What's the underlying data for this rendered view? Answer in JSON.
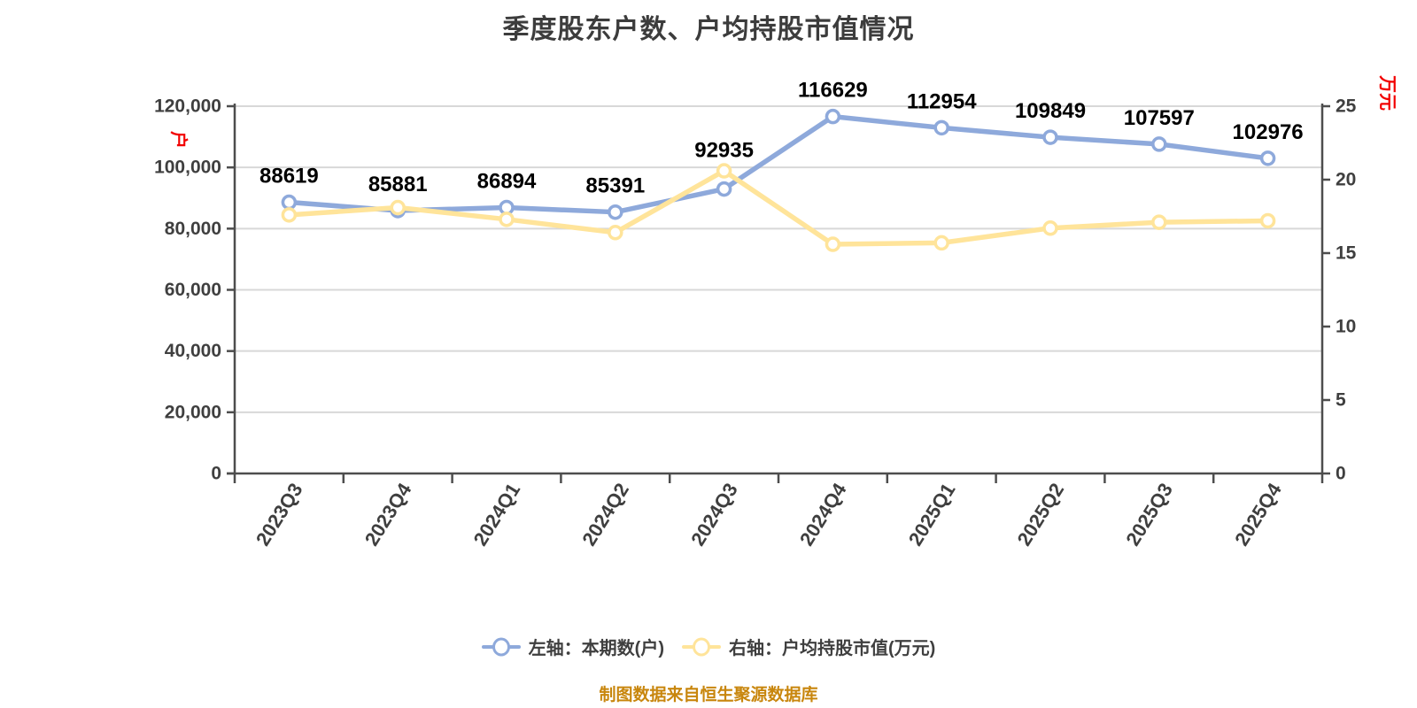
{
  "title": "季度股东户数、户均持股市值情况",
  "footer": "制图数据来自恒生聚源数据库",
  "legend": [
    {
      "label": "左轴：本期数(户)",
      "color": "#8EA9DB"
    },
    {
      "label": "右轴：户均持股市值(万元)",
      "color": "#FFE49A"
    }
  ],
  "colors": {
    "title": "#3C3C3C",
    "grid": "#D8D8D8",
    "axis": "#4D4D4D",
    "tick_text": "#3F3F3F",
    "data_label": "#000000",
    "axis_unit": "#F20000",
    "footer": "#C8860D",
    "background": "#FFFFFF"
  },
  "chart_data": {
    "type": "line",
    "title": "季度股东户数、户均持股市值情况",
    "categories": [
      "2023Q3",
      "2023Q4",
      "2024Q1",
      "2024Q2",
      "2024Q3",
      "2024Q4",
      "2025Q1",
      "2025Q2",
      "2025Q3",
      "2025Q4"
    ],
    "series": [
      {
        "name": "左轴：本期数(户)",
        "axis": "left",
        "color": "#8EA9DB",
        "values": [
          88619,
          85881,
          86894,
          85391,
          92935,
          116629,
          112954,
          109849,
          107597,
          102976
        ],
        "show_labels": true
      },
      {
        "name": "右轴：户均持股市值(万元)",
        "axis": "right",
        "color": "#FFE49A",
        "values": [
          17.6,
          18.1,
          17.3,
          16.4,
          20.6,
          15.6,
          15.7,
          16.7,
          17.1,
          17.2
        ],
        "show_labels": false
      }
    ],
    "left_axis": {
      "unit": "户",
      "min": 0,
      "max": 120000,
      "tick_step": 20000,
      "tick_labels": [
        "0",
        "20,000",
        "40,000",
        "60,000",
        "80,000",
        "100,000",
        "120,000"
      ]
    },
    "right_axis": {
      "unit": "万元",
      "min": 0,
      "max": 25,
      "tick_step": 5,
      "tick_labels": [
        "0",
        "5",
        "10",
        "15",
        "20",
        "25"
      ]
    },
    "grid": "horizontal, left-axis intervals only",
    "legend_position": "bottom"
  }
}
